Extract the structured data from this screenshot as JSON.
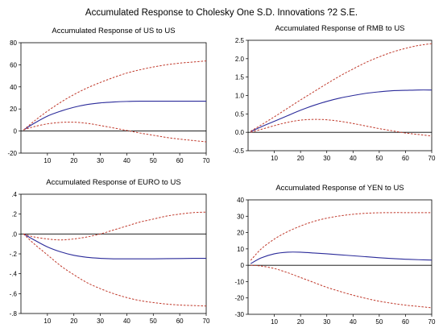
{
  "figure": {
    "title": "Accumulated Response to Cholesky One S.D. Innovations ?2 S.E."
  },
  "colors": {
    "response": "#2b2b9a",
    "band": "#c0392b",
    "zero": "#000000"
  },
  "chart_data": [
    {
      "type": "line",
      "title": "Accumulated Response of US to US",
      "xlim": [
        0,
        70
      ],
      "ylim": [
        -20,
        80
      ],
      "xticks": [
        10,
        20,
        30,
        40,
        50,
        60,
        70
      ],
      "yticks": [
        -20,
        0,
        20,
        40,
        60,
        80
      ],
      "ytick_labels": [
        "-20",
        "0",
        "20",
        "40",
        "60",
        "80"
      ],
      "x": [
        1,
        5,
        10,
        15,
        20,
        25,
        30,
        35,
        40,
        45,
        50,
        55,
        60,
        65,
        70
      ],
      "series": [
        {
          "role": "response",
          "values": [
            1,
            7,
            13.5,
            18,
            21.5,
            24,
            25.5,
            26.3,
            26.8,
            27,
            27,
            27,
            27,
            27,
            27
          ]
        },
        {
          "role": "upper",
          "values": [
            1,
            9,
            18,
            26,
            33,
            39,
            44,
            48.5,
            52.5,
            55.5,
            58,
            60,
            61.5,
            62.5,
            63.5
          ]
        },
        {
          "role": "lower",
          "values": [
            1,
            4,
            6.5,
            7.8,
            8,
            7,
            5,
            2.8,
            0.5,
            -1.8,
            -3.8,
            -5.8,
            -7.3,
            -8.6,
            -9.8
          ]
        }
      ]
    },
    {
      "type": "line",
      "title": "Accumulated Response of RMB to US",
      "xlim": [
        0,
        70
      ],
      "ylim": [
        -0.5,
        2.5
      ],
      "xticks": [
        10,
        20,
        30,
        40,
        50,
        60,
        70
      ],
      "yticks": [
        -0.5,
        0,
        0.5,
        1,
        1.5,
        2,
        2.5
      ],
      "ytick_labels": [
        "-0.5",
        "0.0",
        "0.5",
        "1.0",
        "1.5",
        "2.0",
        "2.5"
      ],
      "x": [
        1,
        5,
        10,
        15,
        20,
        25,
        30,
        35,
        40,
        45,
        50,
        55,
        60,
        65,
        70
      ],
      "series": [
        {
          "role": "response",
          "values": [
            0.02,
            0.15,
            0.3,
            0.45,
            0.6,
            0.73,
            0.84,
            0.93,
            1.0,
            1.06,
            1.1,
            1.13,
            1.14,
            1.15,
            1.15
          ]
        },
        {
          "role": "upper",
          "values": [
            0.03,
            0.2,
            0.42,
            0.65,
            0.88,
            1.1,
            1.32,
            1.53,
            1.72,
            1.9,
            2.05,
            2.18,
            2.28,
            2.36,
            2.41
          ]
        },
        {
          "role": "lower",
          "values": [
            0.0,
            0.08,
            0.18,
            0.27,
            0.33,
            0.35,
            0.34,
            0.3,
            0.24,
            0.17,
            0.1,
            0.04,
            -0.02,
            -0.06,
            -0.1
          ]
        }
      ]
    },
    {
      "type": "line",
      "title": "Accumulated Response of EURO to US",
      "xlim": [
        0,
        70
      ],
      "ylim": [
        -0.8,
        0.4
      ],
      "xticks": [
        10,
        20,
        30,
        40,
        50,
        60,
        70
      ],
      "yticks": [
        -0.8,
        -0.6,
        -0.4,
        -0.2,
        0,
        0.2,
        0.4
      ],
      "ytick_labels": [
        "-.8",
        "-.6",
        "-.4",
        "-.2",
        ".0",
        ".2",
        ".4"
      ],
      "x": [
        1,
        5,
        10,
        15,
        20,
        25,
        30,
        35,
        40,
        45,
        50,
        55,
        60,
        65,
        70
      ],
      "series": [
        {
          "role": "response",
          "values": [
            0.0,
            -0.06,
            -0.13,
            -0.18,
            -0.215,
            -0.235,
            -0.245,
            -0.25,
            -0.25,
            -0.25,
            -0.25,
            -0.248,
            -0.247,
            -0.245,
            -0.245
          ]
        },
        {
          "role": "upper",
          "values": [
            0.0,
            -0.03,
            -0.05,
            -0.06,
            -0.05,
            -0.03,
            0.0,
            0.04,
            0.08,
            0.12,
            0.15,
            0.18,
            0.2,
            0.215,
            0.22
          ]
        },
        {
          "role": "lower",
          "values": [
            0.0,
            -0.1,
            -0.21,
            -0.32,
            -0.41,
            -0.49,
            -0.55,
            -0.6,
            -0.64,
            -0.67,
            -0.69,
            -0.705,
            -0.715,
            -0.72,
            -0.725
          ]
        }
      ]
    },
    {
      "type": "line",
      "title": "Accumulated Response of YEN to US",
      "xlim": [
        0,
        70
      ],
      "ylim": [
        -30,
        40
      ],
      "xticks": [
        10,
        20,
        30,
        40,
        50,
        60,
        70
      ],
      "yticks": [
        -30,
        -20,
        -10,
        0,
        10,
        20,
        30,
        40
      ],
      "ytick_labels": [
        "-30",
        "-20",
        "-10",
        "0",
        "10",
        "20",
        "30",
        "40"
      ],
      "x": [
        1,
        5,
        10,
        15,
        20,
        25,
        30,
        35,
        40,
        45,
        50,
        55,
        60,
        65,
        70
      ],
      "series": [
        {
          "role": "response",
          "values": [
            1,
            4.5,
            7,
            8,
            8,
            7.5,
            7,
            6.4,
            5.8,
            5.2,
            4.6,
            4.1,
            3.7,
            3.4,
            3.2
          ]
        },
        {
          "role": "upper",
          "values": [
            3,
            10,
            16,
            20.5,
            24,
            26.8,
            28.8,
            30.2,
            31.2,
            31.8,
            32.1,
            32.2,
            32.2,
            32.2,
            32.2
          ]
        },
        {
          "role": "lower",
          "values": [
            0,
            -0.5,
            -2,
            -4.5,
            -7.5,
            -10.5,
            -13.5,
            -16,
            -18.3,
            -20.3,
            -22,
            -23.3,
            -24.4,
            -25.2,
            -26
          ]
        }
      ]
    }
  ]
}
